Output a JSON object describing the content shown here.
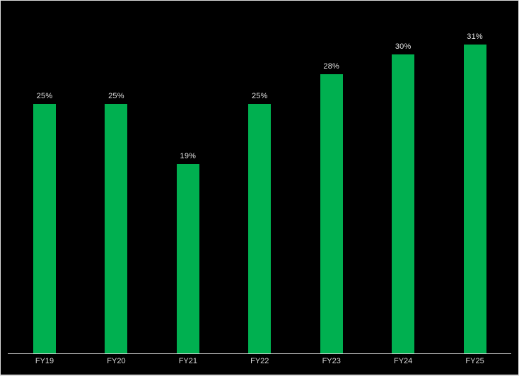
{
  "chart_data": {
    "type": "bar",
    "title": "",
    "xlabel": "",
    "ylabel": "",
    "categories": [
      "FY19",
      "FY20",
      "FY21",
      "FY22",
      "FY23",
      "FY24",
      "FY25"
    ],
    "values": [
      25,
      25,
      19,
      25,
      28,
      30,
      31
    ],
    "data_labels": [
      "25%",
      "25%",
      "19%",
      "25%",
      "28%",
      "30%",
      "31%"
    ],
    "unit": "%",
    "ylim": [
      0,
      35
    ],
    "grid": false,
    "legend": false,
    "y_axis_visible": false,
    "background_color": "#000000",
    "bar_color": "#00B050",
    "axis_line_color": "#D9D9D9",
    "data_label_color": "#E2E2E2",
    "tick_label_color": "#D9D9D9"
  }
}
